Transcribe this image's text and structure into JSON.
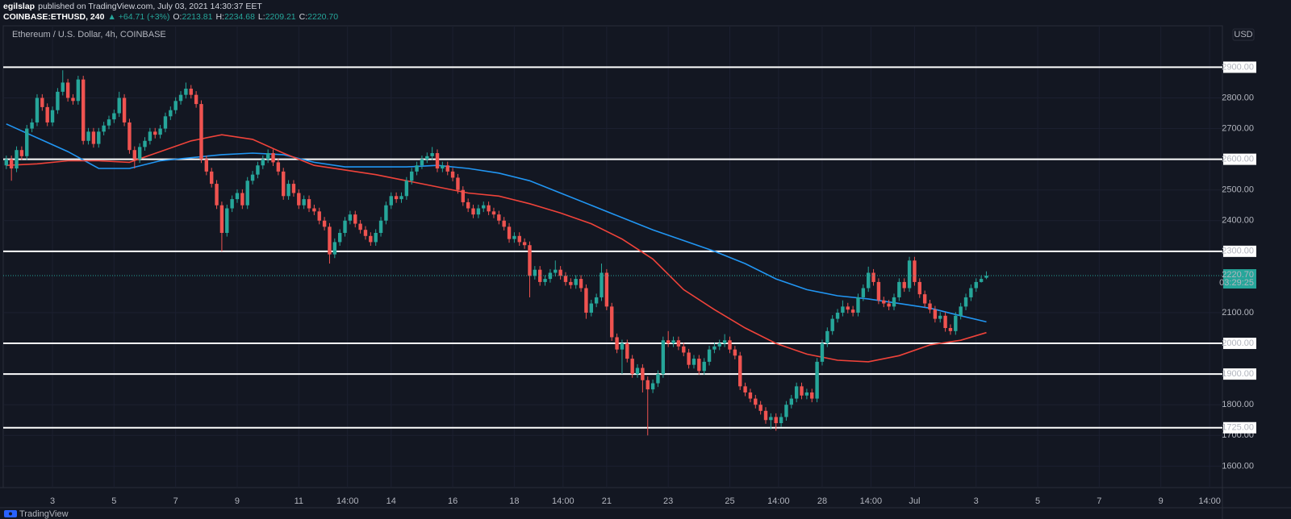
{
  "header": {
    "author": "egilslap",
    "published": "published on TradingView.com, July 03, 2021 14:30:37 EET",
    "symbol": "COINBASE:ETHUSD, 240",
    "change": "▲ +64.71 (+3%)",
    "ohlc": [
      {
        "key": "O:",
        "value": "2213.81"
      },
      {
        "key": "H:",
        "value": "2234.68"
      },
      {
        "key": "L:",
        "value": "2209.21"
      },
      {
        "key": "C:",
        "value": "2220.70"
      }
    ]
  },
  "footer": {
    "brand": "TradingView"
  },
  "chart_data": {
    "type": "candlestick",
    "title": "Ethereum / U.S. Dollar, 4h, COINBASE",
    "currency": "USD",
    "up_color": "#26a69a",
    "down_color": "#ef5350",
    "grid": true,
    "xlim": [
      -0.6,
      237
    ],
    "ylim": [
      1530,
      3035
    ],
    "xticks": [
      {
        "value": 9,
        "label": "3"
      },
      {
        "value": 21,
        "label": "5"
      },
      {
        "value": 33,
        "label": "7"
      },
      {
        "value": 45,
        "label": "9"
      },
      {
        "value": 57,
        "label": "11"
      },
      {
        "value": 66.5,
        "label": "14:00"
      },
      {
        "value": 75,
        "label": "14"
      },
      {
        "value": 87,
        "label": "16"
      },
      {
        "value": 99,
        "label": "18"
      },
      {
        "value": 108.5,
        "label": "14:00"
      },
      {
        "value": 117,
        "label": "21"
      },
      {
        "value": 129,
        "label": "23"
      },
      {
        "value": 141,
        "label": "25"
      },
      {
        "value": 150.5,
        "label": "14:00"
      },
      {
        "value": 159,
        "label": "28"
      },
      {
        "value": 168.5,
        "label": "14:00"
      },
      {
        "value": 177,
        "label": "Jul"
      },
      {
        "value": 189,
        "label": "3"
      },
      {
        "value": 201,
        "label": "5"
      },
      {
        "value": 213,
        "label": "7"
      },
      {
        "value": 225,
        "label": "9"
      },
      {
        "value": 234.5,
        "label": "14:00"
      }
    ],
    "yticks": [
      {
        "value": 1600,
        "label": "1600.00"
      },
      {
        "value": 1700,
        "label": "1700.00"
      },
      {
        "value": 1800,
        "label": "1800.00"
      },
      {
        "value": 2100,
        "label": "2100.00"
      },
      {
        "value": 2400,
        "label": "2400.00"
      },
      {
        "value": 2500,
        "label": "2500.00"
      },
      {
        "value": 2700,
        "label": "2700.00"
      },
      {
        "value": 2800,
        "label": "2800.00"
      }
    ],
    "levels": [
      {
        "value": 2900,
        "label": "2900.00"
      },
      {
        "value": 2600,
        "label": "2600.00"
      },
      {
        "value": 2300,
        "label": "2300.00"
      },
      {
        "value": 2000,
        "label": "2000.00"
      },
      {
        "value": 1900,
        "label": "1900.00"
      },
      {
        "value": 1725,
        "label": "1725.00"
      }
    ],
    "level_color": "#ffffff",
    "last_price": {
      "value": 2220.7,
      "label": "2220.70"
    },
    "countdown": "03:29:25",
    "candles": {
      "open": [
        2580,
        2600,
        2570,
        2630,
        2610,
        2700,
        2720,
        2800,
        2770,
        2720,
        2760,
        2820,
        2850,
        2800,
        2790,
        2860,
        2660,
        2690,
        2650,
        2690,
        2710,
        2730,
        2750,
        2800,
        2720,
        2630,
        2600,
        2640,
        2660,
        2690,
        2680,
        2700,
        2740,
        2760,
        2790,
        2810,
        2830,
        2810,
        2780,
        2600,
        2560,
        2520,
        2450,
        2360,
        2440,
        2470,
        2490,
        2450,
        2530,
        2550,
        2580,
        2600,
        2620,
        2590,
        2560,
        2480,
        2520,
        2490,
        2450,
        2470,
        2440,
        2430,
        2400,
        2380,
        2290,
        2330,
        2360,
        2400,
        2420,
        2390,
        2370,
        2350,
        2330,
        2360,
        2400,
        2450,
        2480,
        2470,
        2480,
        2530,
        2560,
        2580,
        2600,
        2610,
        2620,
        2570,
        2580,
        2560,
        2540,
        2500,
        2460,
        2440,
        2420,
        2440,
        2450,
        2430,
        2420,
        2400,
        2380,
        2340,
        2350,
        2330,
        2320,
        2220,
        2240,
        2200,
        2210,
        2230,
        2240,
        2220,
        2200,
        2190,
        2210,
        2180,
        2100,
        2130,
        2150,
        2230,
        2120,
        2020,
        1980,
        2000,
        1950,
        1900,
        1920,
        1880,
        1850,
        1870,
        1900,
        2010,
        2000,
        2010,
        1990,
        1970,
        1930,
        1950,
        1910,
        1940,
        1980,
        1990,
        2000,
        2010,
        1980,
        1960,
        1860,
        1840,
        1820,
        1800,
        1780,
        1750,
        1760,
        1740,
        1760,
        1800,
        1820,
        1860,
        1830,
        1840,
        1820,
        1940,
        2000,
        2040,
        2080,
        2100,
        2120,
        2110,
        2100,
        2150,
        2180,
        2230,
        2200,
        2140,
        2130,
        2120,
        2150,
        2200,
        2180,
        2270,
        2200,
        2160,
        2130,
        2110,
        2080,
        2090,
        2050,
        2040,
        2090,
        2120,
        2150,
        2180,
        2200,
        2213.81
      ],
      "high": [
        2612,
        2612,
        2642,
        2642,
        2712,
        2732,
        2812,
        2812,
        2782,
        2772,
        2832,
        2890,
        2862,
        2812,
        2872,
        2872,
        2702,
        2702,
        2702,
        2722,
        2742,
        2762,
        2820,
        2812,
        2732,
        2642,
        2652,
        2672,
        2702,
        2702,
        2712,
        2752,
        2772,
        2802,
        2822,
        2850,
        2842,
        2822,
        2792,
        2612,
        2572,
        2532,
        2462,
        2452,
        2482,
        2502,
        2502,
        2542,
        2562,
        2592,
        2612,
        2632,
        2632,
        2602,
        2572,
        2532,
        2532,
        2502,
        2482,
        2482,
        2452,
        2442,
        2412,
        2392,
        2342,
        2372,
        2412,
        2432,
        2432,
        2402,
        2382,
        2362,
        2372,
        2412,
        2462,
        2492,
        2492,
        2492,
        2542,
        2572,
        2592,
        2612,
        2622,
        2640,
        2632,
        2592,
        2592,
        2572,
        2552,
        2512,
        2472,
        2452,
        2452,
        2462,
        2462,
        2442,
        2432,
        2412,
        2392,
        2362,
        2362,
        2342,
        2332,
        2252,
        2252,
        2222,
        2242,
        2270,
        2252,
        2232,
        2212,
        2222,
        2222,
        2192,
        2142,
        2162,
        2260,
        2242,
        2132,
        2032,
        2012,
        2012,
        1962,
        1932,
        1932,
        1892,
        1882,
        1912,
        2022,
        2040,
        2022,
        2022,
        2002,
        1982,
        1962,
        1962,
        1952,
        1992,
        2002,
        2012,
        2030,
        2022,
        1992,
        1972,
        1872,
        1852,
        1832,
        1812,
        1792,
        1772,
        1772,
        1772,
        1812,
        1832,
        1872,
        1872,
        1852,
        1852,
        1952,
        2012,
        2052,
        2092,
        2112,
        2140,
        2132,
        2122,
        2162,
        2192,
        2250,
        2242,
        2212,
        2152,
        2142,
        2162,
        2212,
        2212,
        2282,
        2282,
        2212,
        2172,
        2142,
        2122,
        2102,
        2102,
        2062,
        2102,
        2132,
        2162,
        2192,
        2212,
        2222,
        2234.68
      ],
      "low": [
        2568,
        2530,
        2558,
        2598,
        2598,
        2688,
        2708,
        2758,
        2708,
        2708,
        2748,
        2808,
        2788,
        2778,
        2778,
        2648,
        2648,
        2638,
        2638,
        2678,
        2698,
        2718,
        2738,
        2708,
        2618,
        2570,
        2588,
        2628,
        2648,
        2668,
        2668,
        2688,
        2728,
        2748,
        2778,
        2798,
        2798,
        2768,
        2588,
        2548,
        2508,
        2438,
        2300,
        2348,
        2428,
        2458,
        2438,
        2438,
        2518,
        2538,
        2568,
        2588,
        2578,
        2548,
        2468,
        2468,
        2478,
        2438,
        2438,
        2428,
        2418,
        2388,
        2368,
        2260,
        2278,
        2318,
        2348,
        2388,
        2378,
        2358,
        2338,
        2318,
        2318,
        2348,
        2388,
        2438,
        2458,
        2458,
        2468,
        2518,
        2548,
        2568,
        2588,
        2598,
        2558,
        2558,
        2548,
        2528,
        2488,
        2448,
        2428,
        2408,
        2408,
        2428,
        2418,
        2408,
        2388,
        2368,
        2328,
        2328,
        2318,
        2308,
        2150,
        2208,
        2188,
        2188,
        2198,
        2218,
        2208,
        2188,
        2178,
        2178,
        2168,
        2080,
        2088,
        2118,
        2138,
        2108,
        2008,
        1968,
        1900,
        1938,
        1888,
        1888,
        1840,
        1700,
        1838,
        1858,
        1888,
        1988,
        1988,
        1978,
        1958,
        1918,
        1918,
        1898,
        1898,
        1928,
        1968,
        1978,
        1988,
        1968,
        1948,
        1848,
        1828,
        1808,
        1788,
        1768,
        1738,
        1720,
        1715,
        1728,
        1748,
        1788,
        1808,
        1818,
        1818,
        1808,
        1808,
        1928,
        1988,
        2028,
        2068,
        2088,
        2098,
        2088,
        2088,
        2138,
        2168,
        2188,
        2128,
        2118,
        2108,
        2108,
        2138,
        2168,
        2168,
        2188,
        2148,
        2118,
        2098,
        2068,
        2068,
        2038,
        2028,
        2028,
        2078,
        2108,
        2138,
        2168,
        2198,
        2209.21
      ],
      "close": [
        2600,
        2570,
        2630,
        2610,
        2700,
        2720,
        2800,
        2770,
        2720,
        2760,
        2820,
        2850,
        2800,
        2790,
        2860,
        2660,
        2690,
        2650,
        2690,
        2710,
        2730,
        2750,
        2800,
        2720,
        2630,
        2600,
        2640,
        2660,
        2690,
        2680,
        2700,
        2740,
        2760,
        2790,
        2810,
        2830,
        2810,
        2780,
        2600,
        2560,
        2520,
        2450,
        2360,
        2440,
        2470,
        2490,
        2450,
        2530,
        2550,
        2580,
        2600,
        2620,
        2590,
        2560,
        2480,
        2520,
        2490,
        2450,
        2470,
        2440,
        2430,
        2400,
        2380,
        2290,
        2330,
        2360,
        2400,
        2420,
        2390,
        2370,
        2350,
        2330,
        2360,
        2400,
        2450,
        2480,
        2470,
        2480,
        2530,
        2560,
        2580,
        2600,
        2610,
        2620,
        2570,
        2580,
        2560,
        2540,
        2500,
        2460,
        2440,
        2420,
        2440,
        2450,
        2430,
        2420,
        2400,
        2380,
        2340,
        2350,
        2330,
        2320,
        2220,
        2240,
        2200,
        2210,
        2230,
        2240,
        2220,
        2200,
        2190,
        2210,
        2180,
        2100,
        2130,
        2150,
        2230,
        2120,
        2020,
        1980,
        2000,
        1950,
        1900,
        1920,
        1880,
        1850,
        1870,
        1900,
        2010,
        2000,
        2010,
        1990,
        1970,
        1930,
        1950,
        1910,
        1940,
        1980,
        1990,
        2000,
        2010,
        1980,
        1960,
        1860,
        1840,
        1820,
        1800,
        1780,
        1750,
        1760,
        1740,
        1760,
        1800,
        1820,
        1860,
        1830,
        1840,
        1820,
        1940,
        2000,
        2040,
        2080,
        2100,
        2120,
        2110,
        2100,
        2150,
        2180,
        2230,
        2200,
        2140,
        2130,
        2120,
        2150,
        2200,
        2180,
        2270,
        2200,
        2160,
        2130,
        2110,
        2080,
        2090,
        2050,
        2040,
        2090,
        2120,
        2150,
        2180,
        2200,
        2210,
        2220.7
      ]
    },
    "series": [
      {
        "color": "#2196f3",
        "x": [
          0,
          6,
          12,
          18,
          24,
          30,
          36,
          42,
          48,
          54,
          60,
          66,
          72,
          78,
          84,
          90,
          96,
          102,
          108,
          114,
          120,
          126,
          132,
          138,
          144,
          150,
          156,
          162,
          168,
          174,
          180,
          186,
          191
        ],
        "values": [
          2715,
          2670,
          2625,
          2570,
          2570,
          2595,
          2605,
          2615,
          2620,
          2615,
          2590,
          2575,
          2575,
          2575,
          2580,
          2570,
          2555,
          2530,
          2490,
          2450,
          2410,
          2370,
          2335,
          2300,
          2260,
          2210,
          2175,
          2155,
          2145,
          2130,
          2115,
          2090,
          2070
        ]
      },
      {
        "color": "#f0433a",
        "x": [
          0,
          6,
          12,
          18,
          24,
          30,
          36,
          42,
          48,
          54,
          60,
          66,
          72,
          78,
          84,
          90,
          96,
          102,
          108,
          114,
          120,
          126,
          132,
          138,
          144,
          150,
          156,
          162,
          168,
          174,
          180,
          186,
          191
        ],
        "values": [
          2580,
          2585,
          2595,
          2595,
          2590,
          2625,
          2660,
          2680,
          2665,
          2620,
          2580,
          2565,
          2550,
          2530,
          2510,
          2490,
          2480,
          2455,
          2425,
          2390,
          2340,
          2275,
          2175,
          2110,
          2050,
          2000,
          1965,
          1945,
          1940,
          1960,
          1995,
          2010,
          2035
        ]
      }
    ]
  }
}
